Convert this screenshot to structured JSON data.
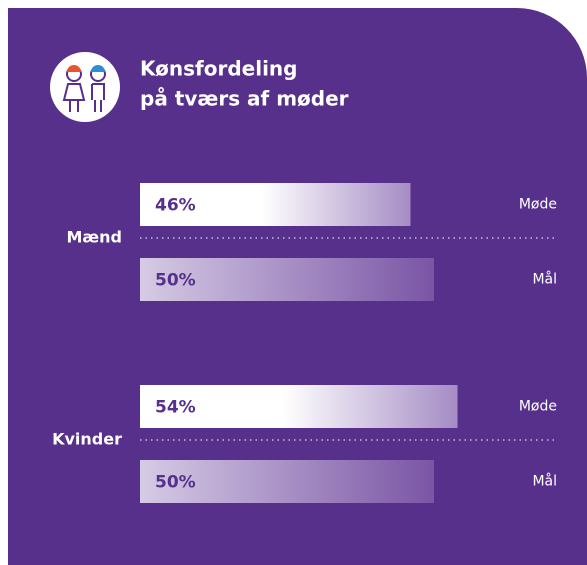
{
  "chart_data": {
    "type": "bar",
    "orientation": "horizontal",
    "title": [
      "Kønsfordeling",
      "på tværs af møder"
    ],
    "categories": [
      "Mænd",
      "Kvinder"
    ],
    "series": [
      {
        "name": "Møde",
        "color": "#ffffff",
        "values": [
          46,
          54
        ],
        "value_labels": [
          "46%",
          "54%"
        ]
      },
      {
        "name": "Mål",
        "color": "#d6cbe5",
        "values": [
          50,
          50
        ],
        "value_labels": [
          "50%",
          "50%"
        ]
      }
    ],
    "xlim": [
      0,
      100
    ]
  }
}
